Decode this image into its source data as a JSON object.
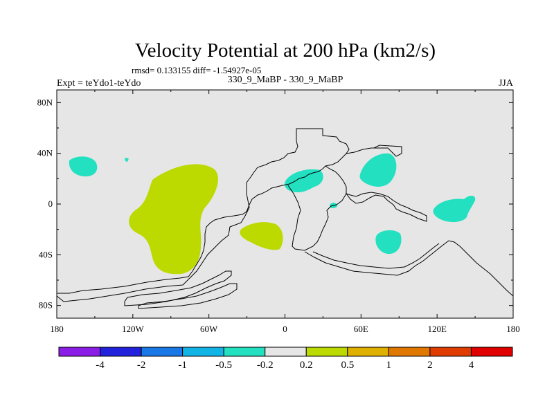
{
  "title": "Velocity Potential at 200 hPa (km2/s)",
  "stats": "rmsd= 0.133155 diff= -1.54927e-05",
  "left_label": "Expt = teYdo1-teYdo",
  "center_label": "330_9_MaBP - 330_9_MaBP",
  "right_label": "JJA",
  "map": {
    "extent": {
      "lon": [
        -180,
        180
      ],
      "lat": [
        -90,
        90
      ]
    },
    "lat_ticks": [
      {
        "value": 80,
        "label": "80N"
      },
      {
        "value": 40,
        "label": "40N"
      },
      {
        "value": 0,
        "label": "0"
      },
      {
        "value": -40,
        "label": "40S"
      },
      {
        "value": -80,
        "label": "80S"
      }
    ],
    "lon_ticks": [
      {
        "value": -180,
        "label": "180"
      },
      {
        "value": -120,
        "label": "120W"
      },
      {
        "value": -60,
        "label": "60W"
      },
      {
        "value": 0,
        "label": "0"
      },
      {
        "value": 60,
        "label": "60E"
      },
      {
        "value": 120,
        "label": "120E"
      },
      {
        "value": 180,
        "label": "180"
      }
    ],
    "background_color": "#e6e6e6",
    "coast_color": "#000000",
    "regions": [
      {
        "name": "positive-anomaly-east-pacific",
        "class": "0.2 to 0.5",
        "color": "#bcd900"
      },
      {
        "name": "positive-anomaly-south-atlantic",
        "class": "0.2 to 0.5",
        "color": "#bcd900"
      },
      {
        "name": "negative-anomaly-north-pacific",
        "class": "-0.5 to -0.2",
        "color": "#22e0c0"
      },
      {
        "name": "negative-anomaly-north-africa",
        "class": "-0.5 to -0.2",
        "color": "#22e0c0"
      },
      {
        "name": "negative-anomaly-central-africa-dot",
        "class": "-0.5 to -0.2",
        "color": "#22e0c0"
      },
      {
        "name": "negative-anomaly-middle-east",
        "class": "-0.5 to -0.2",
        "color": "#22e0c0"
      },
      {
        "name": "negative-anomaly-indian-ocean",
        "class": "-0.5 to -0.2",
        "color": "#22e0c0"
      },
      {
        "name": "negative-anomaly-west-pacific",
        "class": "-0.5 to -0.2",
        "color": "#22e0c0"
      }
    ]
  },
  "colorbar": {
    "colors": [
      "#8a1ee6",
      "#2222dc",
      "#1a78e6",
      "#12b4e6",
      "#22e0c0",
      "#e6e6e6",
      "#bcd900",
      "#e0b000",
      "#e07800",
      "#e03c00",
      "#e00000"
    ],
    "labels": [
      "-4",
      "-2",
      "-1",
      "-0.5",
      "-0.2",
      "0.2",
      "0.5",
      "1",
      "2",
      "4"
    ]
  }
}
